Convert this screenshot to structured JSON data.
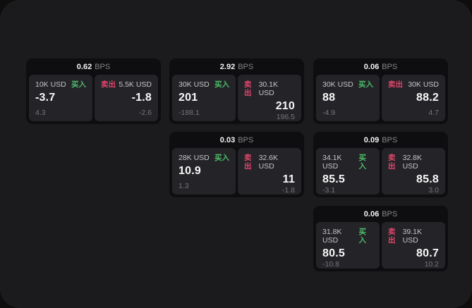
{
  "labels": {
    "bps": "BPS",
    "buy": "买入",
    "sell": "卖出"
  },
  "colors": {
    "outer_bg": "#0e0e0f",
    "panel_bg": "#1b1b1d",
    "card_bg": "#0e0e10",
    "pane_bg": "#242428",
    "buy_accent": "#4cbd6a",
    "sell_accent": "#e0456b",
    "value_text": "#f7f7f7",
    "muted_text": "#757579"
  },
  "cards": [
    {
      "bps": "0.62",
      "buy": {
        "size": "10K USD",
        "price": "-3.7",
        "delta": "4.3"
      },
      "sell": {
        "size": "5.5K USD",
        "price": "-1.8",
        "delta": "-2.6"
      }
    },
    {
      "bps": "2.92",
      "buy": {
        "size": "30K USD",
        "price": "201",
        "delta": "-188.1"
      },
      "sell": {
        "size": "30.1K USD",
        "price": "210",
        "delta": "196.5"
      }
    },
    {
      "bps": "0.06",
      "buy": {
        "size": "30K USD",
        "price": "88",
        "delta": "-4.9"
      },
      "sell": {
        "size": "30K USD",
        "price": "88.2",
        "delta": "4.7"
      }
    },
    {
      "bps": "0.03",
      "buy": {
        "size": "28K USD",
        "price": "10.9",
        "delta": "1.3"
      },
      "sell": {
        "size": "32.6K USD",
        "price": "11",
        "delta": "-1.8"
      }
    },
    {
      "bps": "0.09",
      "buy": {
        "size": "34.1K USD",
        "price": "85.5",
        "delta": "-3.1"
      },
      "sell": {
        "size": "32.8K USD",
        "price": "85.8",
        "delta": "3.0"
      }
    },
    {
      "bps": "0.06",
      "buy": {
        "size": "31.8K USD",
        "price": "80.5",
        "delta": "-10.8"
      },
      "sell": {
        "size": "39.1K USD",
        "price": "80.7",
        "delta": "10.2"
      }
    }
  ]
}
